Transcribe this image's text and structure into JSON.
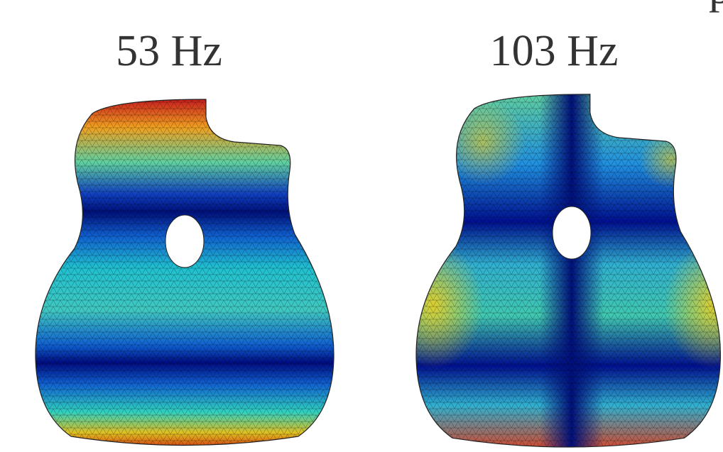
{
  "panels": [
    {
      "label": "53 Hz"
    },
    {
      "label": "103 Hz"
    }
  ],
  "edge_text": "p"
}
